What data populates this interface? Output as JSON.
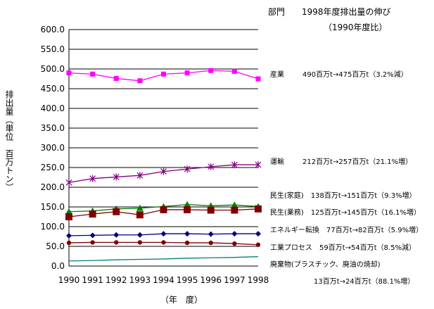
{
  "header": {
    "title": "部門　　1998年度排出量の伸び",
    "subtitle": "（1990年度比）"
  },
  "chart_data": {
    "type": "line",
    "x": [
      "1990",
      "1991",
      "1992",
      "1993",
      "1994",
      "1995",
      "1996",
      "1997",
      "1998"
    ],
    "ylim": [
      0,
      600
    ],
    "yticks": [
      "0.0",
      "50.0",
      "100.0",
      "150.0",
      "200.0",
      "250.0",
      "300.0",
      "350.0",
      "400.0",
      "450.0",
      "500.0",
      "550.0",
      "600.0"
    ],
    "xlabel": "（年　度）",
    "ylabel": "排出量（単位　百万トン）",
    "grid": true,
    "series": [
      {
        "name": "産業",
        "color": "#ff00ff",
        "marker": "square",
        "values": [
          490,
          487,
          476,
          470,
          487,
          490,
          496,
          494,
          475
        ]
      },
      {
        "name": "運輸",
        "color": "#800080",
        "marker": "star",
        "values": [
          212,
          222,
          226,
          230,
          240,
          246,
          252,
          257,
          257
        ]
      },
      {
        "name": "民生(家庭)",
        "color": "#008000",
        "marker": "triangle",
        "values": [
          138,
          140,
          145,
          147,
          151,
          156,
          153,
          155,
          151
        ]
      },
      {
        "name": "民生(業務)",
        "color": "#800000",
        "marker": "square",
        "values": [
          125,
          132,
          138,
          130,
          143,
          143,
          142,
          142,
          145
        ]
      },
      {
        "name": "エネルギー転換",
        "color": "#000080",
        "marker": "diamond",
        "values": [
          77,
          78,
          79,
          79,
          82,
          82,
          81,
          82,
          82
        ]
      },
      {
        "name": "工業プロセス",
        "color": "#800000",
        "marker": "circle",
        "values": [
          59,
          60,
          60,
          60,
          60,
          59,
          59,
          57,
          54
        ]
      },
      {
        "name": "廃棄物(プラスチック、廃油の焼却)",
        "color": "#008080",
        "marker": "none",
        "values": [
          13,
          14,
          16,
          17,
          18,
          20,
          21,
          22,
          24
        ]
      }
    ],
    "annotations": [
      {
        "name": "産業",
        "text": "490百万t→475百万t（3.2%減）"
      },
      {
        "name": "運輸",
        "text": "212百万t→257百万t（21.1%増）"
      },
      {
        "name": "民生(家庭)",
        "text": "138百万t→151百万t（9.3%増）"
      },
      {
        "name": "民生(業務)",
        "text": "125百万t→145百万t（16.1%増）"
      },
      {
        "name": "エネルギー転換",
        "text": "77百万t→82百万t（5.9%増）"
      },
      {
        "name": "工業プロセス",
        "text": "59百万t→54百万t（8.5%減）"
      },
      {
        "name": "廃棄物(プラスチック、廃油の焼却)",
        "text": "13百万t→24百万t（88.1%増）"
      }
    ]
  }
}
